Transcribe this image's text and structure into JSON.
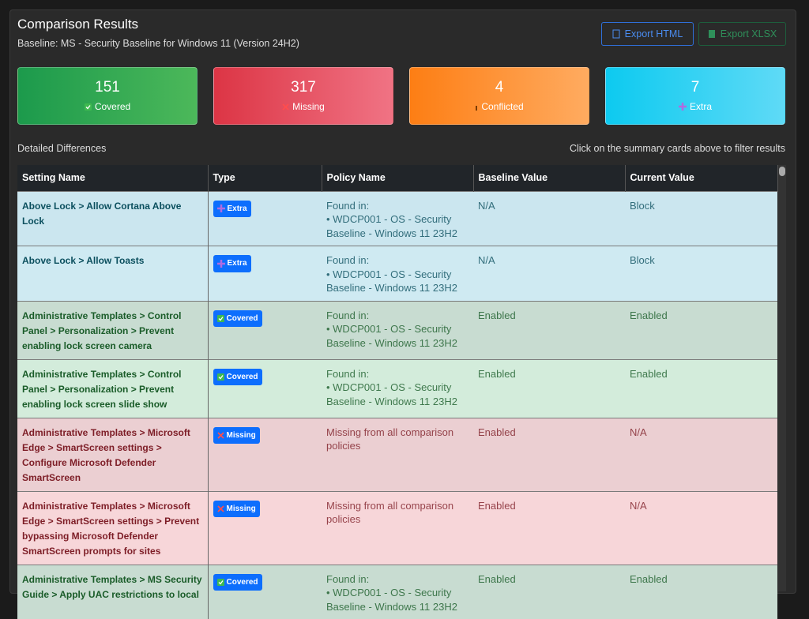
{
  "header": {
    "title": "Comparison Results",
    "subtitle": "Baseline: MS - Security Baseline for Windows 11 (Version 24H2)"
  },
  "buttons": [
    "Export HTML",
    "Export XLSX"
  ],
  "cards": [
    {
      "value": 151,
      "label": "Covered"
    },
    {
      "value": 317,
      "label": "Missing"
    },
    {
      "value": 4,
      "label": "Conflicted"
    },
    {
      "value": 7,
      "label": "Extra"
    }
  ],
  "section": {
    "title": "Detailed Differences",
    "hint": "Click on the summary cards above to filter results"
  },
  "table": {
    "columns": [
      "Setting Name",
      "Type",
      "Policy Name",
      "Baseline Value",
      "Current Value"
    ],
    "rows": [
      {
        "setting": "Above Lock > Allow Cortana Above Lock",
        "type": "Extra",
        "policy": [
          "Found in:",
          "• WDCP001 - OS - Security Baseline - Windows 11 23H2"
        ],
        "baseline": "N/A",
        "current": "Block"
      },
      {
        "setting": "Above Lock > Allow Toasts",
        "type": "Extra",
        "policy": [
          "Found in:",
          "• WDCP001 - OS - Security Baseline - Windows 11 23H2"
        ],
        "baseline": "N/A",
        "current": "Block"
      },
      {
        "setting": "Administrative Templates > Control Panel > Personalization > Prevent enabling lock screen camera",
        "type": "Covered",
        "policy": [
          "Found in:",
          "• WDCP001 - OS - Security Baseline - Windows 11 23H2"
        ],
        "baseline": "Enabled",
        "current": "Enabled"
      },
      {
        "setting": "Administrative Templates > Control Panel > Personalization > Prevent enabling lock screen slide show",
        "type": "Covered",
        "policy": [
          "Found in:",
          "• WDCP001 - OS - Security Baseline - Windows 11 23H2"
        ],
        "baseline": "Enabled",
        "current": "Enabled"
      },
      {
        "setting": "Administrative Templates > Microsoft Edge > SmartScreen settings > Configure Microsoft Defender SmartScreen",
        "type": "Missing",
        "policy": [
          "Missing from all comparison policies"
        ],
        "baseline": "Enabled",
        "current": "N/A"
      },
      {
        "setting": "Administrative Templates > Microsoft Edge > SmartScreen settings > Prevent bypassing Microsoft Defender SmartScreen prompts for sites",
        "type": "Missing",
        "policy": [
          "Missing from all comparison policies"
        ],
        "baseline": "Enabled",
        "current": "N/A"
      },
      {
        "setting": "Administrative Templates > MS Security Guide > Apply UAC restrictions to local",
        "type": "Covered",
        "policy": [
          "Found in:",
          "• WDCP001 - OS - Security Baseline - Windows 11 23H2"
        ],
        "baseline": "Enabled",
        "current": "Enabled"
      }
    ]
  }
}
